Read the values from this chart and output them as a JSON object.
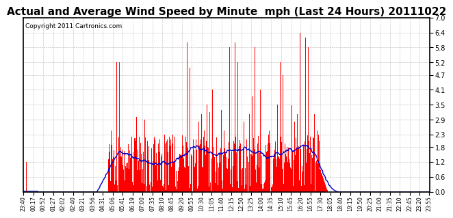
{
  "title": "Actual and Average Wind Speed by Minute  mph (Last 24 Hours) 20111022",
  "copyright_text": "Copyright 2011 Cartronics.com",
  "yticks": [
    0.0,
    0.6,
    1.2,
    1.8,
    2.3,
    2.9,
    3.5,
    4.1,
    4.7,
    5.2,
    5.8,
    6.4,
    7.0
  ],
  "ylim": [
    0.0,
    7.0
  ],
  "bar_color": "#FF0000",
  "line_color": "#0000CC",
  "background_color": "#FFFFFF",
  "grid_color": "#AAAAAA",
  "title_fontsize": 11,
  "copyright_fontsize": 6.5,
  "x_tick_labels": [
    "23:40",
    "00:17",
    "00:52",
    "01:27",
    "02:02",
    "02:40",
    "03:21",
    "03:56",
    "04:31",
    "05:06",
    "05:41",
    "06:19",
    "07:00",
    "07:35",
    "08:10",
    "08:45",
    "09:20",
    "09:55",
    "10:30",
    "11:05",
    "11:40",
    "12:15",
    "12:50",
    "13:25",
    "14:00",
    "14:35",
    "15:10",
    "15:45",
    "16:20",
    "16:55",
    "17:30",
    "18:05",
    "18:40",
    "19:15",
    "19:50",
    "20:25",
    "21:00",
    "21:35",
    "22:10",
    "22:45",
    "23:20",
    "23:55"
  ]
}
